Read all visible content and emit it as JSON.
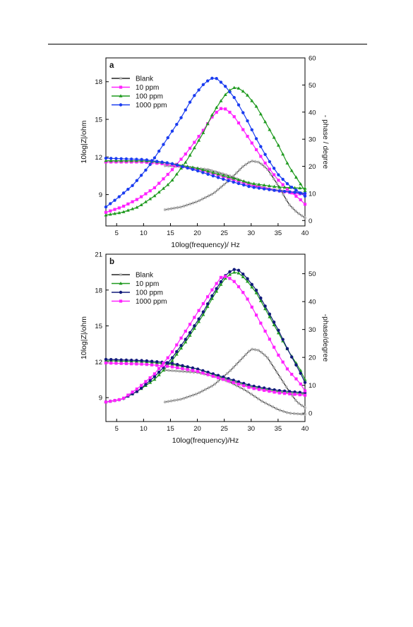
{
  "chart_data": [
    {
      "type": "line",
      "panel_label": "a",
      "xlabel": "10log(frequency)/ Hz",
      "ylabel_left": "10log|Z|/ohm",
      "ylabel_right": "- phase / degree",
      "xlim": [
        3,
        40
      ],
      "ylim_left": [
        6.5,
        19.9
      ],
      "ylim_right": [
        -2,
        60
      ],
      "x_ticks": [
        5,
        10,
        15,
        20,
        25,
        30,
        35,
        40
      ],
      "y_left_ticks": [
        9,
        12,
        15,
        18
      ],
      "y_right_ticks": [
        0,
        10,
        20,
        30,
        40,
        50,
        60
      ],
      "legend": [
        "Blank",
        "10 ppm",
        "100 ppm",
        "1000 ppm"
      ],
      "series": [
        {
          "name": "Blank",
          "color": "#222222",
          "marker": "star",
          "impedance": [
            [
              14,
              11.3
            ],
            [
              18,
              11.2
            ],
            [
              22,
              11.0
            ],
            [
              26,
              10.5
            ],
            [
              30,
              9.8
            ],
            [
              34,
              9.4
            ],
            [
              40,
              9.1
            ]
          ],
          "phase": [
            [
              14,
              4
            ],
            [
              17,
              5
            ],
            [
              20,
              7
            ],
            [
              23,
              10
            ],
            [
              26,
              15
            ],
            [
              28.5,
              20
            ],
            [
              30,
              22
            ],
            [
              31.5,
              21.5
            ],
            [
              33,
              19
            ],
            [
              35,
              13
            ],
            [
              37,
              6
            ],
            [
              38.5,
              3
            ],
            [
              40,
              1
            ]
          ]
        },
        {
          "name": "10 ppm",
          "color": "#ff22ff",
          "marker": "square",
          "impedance": [
            [
              3,
              11.6
            ],
            [
              10,
              11.6
            ],
            [
              15,
              11.4
            ],
            [
              20,
              11.0
            ],
            [
              25,
              10.4
            ],
            [
              30,
              9.7
            ],
            [
              35,
              9.3
            ],
            [
              40,
              9.0
            ]
          ],
          "phase": [
            [
              3,
              3
            ],
            [
              6,
              5
            ],
            [
              9,
              8
            ],
            [
              12,
              12
            ],
            [
              15,
              18
            ],
            [
              18,
              25
            ],
            [
              21,
              33
            ],
            [
              23,
              39
            ],
            [
              24.5,
              41.5
            ],
            [
              25.5,
              41
            ],
            [
              27,
              38
            ],
            [
              29,
              32
            ],
            [
              31,
              26
            ],
            [
              33,
              20
            ],
            [
              35,
              15
            ],
            [
              37,
              11
            ],
            [
              39,
              8
            ],
            [
              40,
              6
            ]
          ]
        },
        {
          "name": "100 ppm",
          "color": "#1f9a1f",
          "marker": "triangle",
          "impedance": [
            [
              3,
              11.7
            ],
            [
              10,
              11.7
            ],
            [
              15,
              11.5
            ],
            [
              20,
              11.1
            ],
            [
              25,
              10.5
            ],
            [
              30,
              9.9
            ],
            [
              35,
              9.6
            ],
            [
              40,
              9.5
            ]
          ],
          "phase": [
            [
              3,
              2
            ],
            [
              6,
              3
            ],
            [
              9,
              5
            ],
            [
              12,
              9
            ],
            [
              15,
              14
            ],
            [
              18,
              22
            ],
            [
              21,
              32
            ],
            [
              23,
              40
            ],
            [
              25,
              46
            ],
            [
              26.5,
              49
            ],
            [
              27.5,
              49
            ],
            [
              29,
              47
            ],
            [
              31,
              42
            ],
            [
              33,
              35
            ],
            [
              35,
              28
            ],
            [
              37,
              20
            ],
            [
              39,
              14
            ],
            [
              40,
              11
            ]
          ]
        },
        {
          "name": "1000 ppm",
          "color": "#1a3cf0",
          "marker": "circle",
          "impedance": [
            [
              3,
              11.9
            ],
            [
              10,
              11.8
            ],
            [
              15,
              11.5
            ],
            [
              20,
              10.9
            ],
            [
              25,
              10.2
            ],
            [
              30,
              9.6
            ],
            [
              35,
              9.3
            ],
            [
              40,
              9.1
            ]
          ],
          "phase": [
            [
              3,
              5
            ],
            [
              5,
              8
            ],
            [
              8,
              13
            ],
            [
              11,
              20
            ],
            [
              14,
              29
            ],
            [
              17,
              38
            ],
            [
              19,
              45
            ],
            [
              21,
              50
            ],
            [
              22.5,
              52.5
            ],
            [
              23.5,
              52.5
            ],
            [
              25,
              50
            ],
            [
              27,
              45
            ],
            [
              29,
              38
            ],
            [
              31,
              30
            ],
            [
              33,
              23
            ],
            [
              35,
              17
            ],
            [
              37,
              13
            ],
            [
              40,
              9
            ]
          ]
        }
      ]
    },
    {
      "type": "line",
      "panel_label": "b",
      "xlabel": "10log(frequency)/Hz",
      "ylabel_left": "10log|Z|/ohm",
      "ylabel_right": "-phase/degree",
      "xlim": [
        3,
        40
      ],
      "ylim_left": [
        7.0,
        21.0
      ],
      "ylim_right": [
        -3,
        57
      ],
      "x_ticks": [
        5,
        10,
        15,
        20,
        25,
        30,
        35,
        40
      ],
      "y_left_ticks": [
        9,
        12,
        15,
        18,
        21
      ],
      "y_right_ticks": [
        0,
        10,
        20,
        30,
        40,
        50
      ],
      "legend": [
        "Blank",
        "10 ppm",
        "100 ppm",
        "1000 ppm"
      ],
      "series": [
        {
          "name": "Blank",
          "color": "#222222",
          "marker": "star",
          "impedance": [
            [
              14,
              11.3
            ],
            [
              17,
              11.2
            ],
            [
              20,
              11.1
            ],
            [
              23,
              10.8
            ],
            [
              26,
              10.3
            ],
            [
              29,
              9.6
            ],
            [
              32,
              8.7
            ],
            [
              35,
              8.0
            ],
            [
              37,
              7.7
            ],
            [
              40,
              7.6
            ]
          ],
          "phase": [
            [
              14,
              4
            ],
            [
              17,
              5
            ],
            [
              20,
              7
            ],
            [
              23,
              10
            ],
            [
              26,
              15
            ],
            [
              28.5,
              20
            ],
            [
              30,
              23
            ],
            [
              31.5,
              22.5
            ],
            [
              33,
              20
            ],
            [
              35,
              14
            ],
            [
              37,
              8
            ],
            [
              38.5,
              4
            ],
            [
              40,
              2
            ]
          ]
        },
        {
          "name": "10 ppm",
          "color": "#1f9a1f",
          "marker": "triangle",
          "impedance": [
            [
              3,
              12.1
            ],
            [
              10,
              12.0
            ],
            [
              15,
              11.8
            ],
            [
              20,
              11.4
            ],
            [
              25,
              10.6
            ],
            [
              30,
              9.9
            ],
            [
              35,
              9.5
            ],
            [
              40,
              9.3
            ]
          ],
          "phase": [
            [
              3,
              4
            ],
            [
              6,
              5
            ],
            [
              9,
              8
            ],
            [
              12,
              12
            ],
            [
              15,
              18
            ],
            [
              18,
              26
            ],
            [
              21,
              35
            ],
            [
              23,
              42
            ],
            [
              25,
              48
            ],
            [
              26.5,
              50.5
            ],
            [
              27.5,
              50.5
            ],
            [
              29,
              48
            ],
            [
              31,
              43
            ],
            [
              33,
              36
            ],
            [
              35,
              29
            ],
            [
              37,
              22
            ],
            [
              39,
              16
            ],
            [
              40,
              12
            ]
          ]
        },
        {
          "name": "100 ppm",
          "color": "#101a7a",
          "marker": "circle",
          "impedance": [
            [
              3,
              12.2
            ],
            [
              10,
              12.1
            ],
            [
              15,
              11.9
            ],
            [
              20,
              11.4
            ],
            [
              25,
              10.7
            ],
            [
              30,
              10.0
            ],
            [
              35,
              9.6
            ],
            [
              40,
              9.4
            ]
          ],
          "phase": [
            [
              3,
              4
            ],
            [
              6,
              5
            ],
            [
              9,
              8
            ],
            [
              12,
              13
            ],
            [
              15,
              19
            ],
            [
              18,
              27
            ],
            [
              21,
              36
            ],
            [
              23,
              43
            ],
            [
              25,
              49
            ],
            [
              26.5,
              51.5
            ],
            [
              27.5,
              51.5
            ],
            [
              29,
              49
            ],
            [
              31,
              44
            ],
            [
              33,
              37
            ],
            [
              35,
              30
            ],
            [
              37,
              22
            ],
            [
              39,
              15
            ],
            [
              40,
              11
            ]
          ]
        },
        {
          "name": "1000 ppm",
          "color": "#ff22ff",
          "marker": "square",
          "impedance": [
            [
              3,
              11.9
            ],
            [
              10,
              11.8
            ],
            [
              15,
              11.6
            ],
            [
              20,
              11.2
            ],
            [
              25,
              10.5
            ],
            [
              30,
              9.8
            ],
            [
              35,
              9.4
            ],
            [
              40,
              9.2
            ]
          ],
          "phase": [
            [
              3,
              4
            ],
            [
              6,
              5
            ],
            [
              9,
              9
            ],
            [
              12,
              14
            ],
            [
              15,
              21
            ],
            [
              18,
              30
            ],
            [
              21,
              39
            ],
            [
              23,
              45
            ],
            [
              24.5,
              49
            ],
            [
              25.5,
              49
            ],
            [
              27,
              47
            ],
            [
              29,
              42
            ],
            [
              31,
              35
            ],
            [
              33,
              28
            ],
            [
              35,
              21
            ],
            [
              37,
              15
            ],
            [
              39,
              11
            ],
            [
              40,
              8
            ]
          ]
        }
      ]
    }
  ]
}
